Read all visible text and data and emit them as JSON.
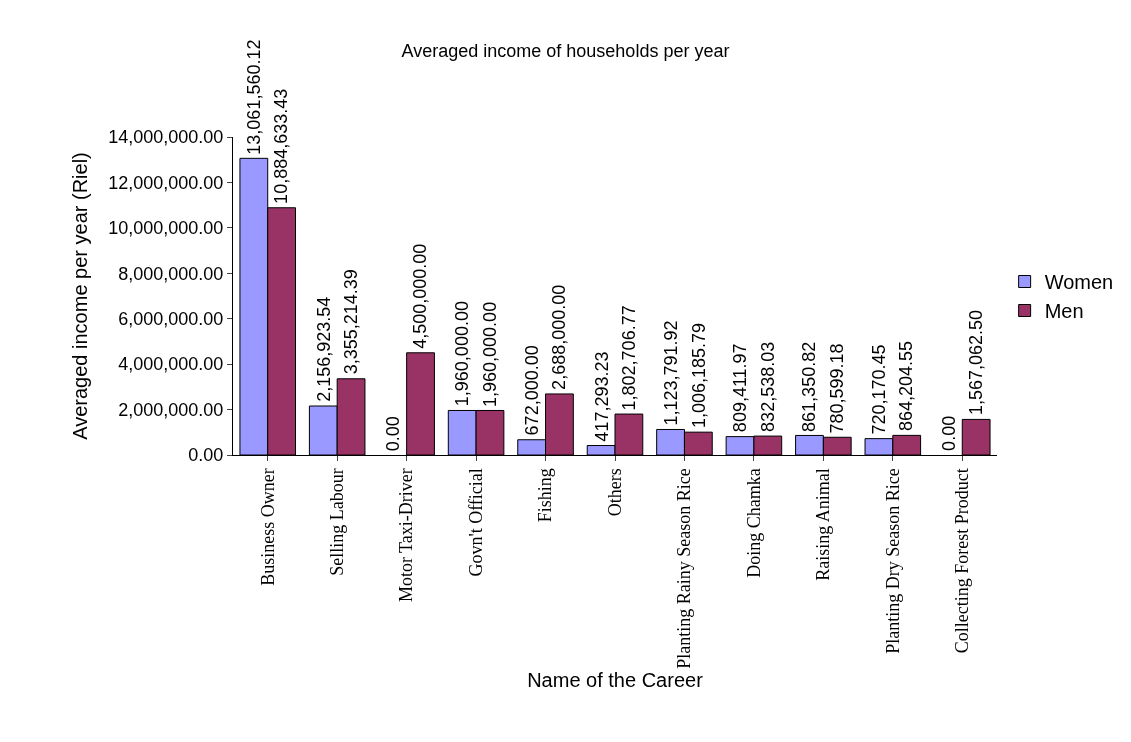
{
  "chart_data": {
    "type": "bar",
    "title": "Averaged income of households per year",
    "xlabel": "Name of the Career",
    "ylabel": "Averaged income per year (Riel)",
    "categories": [
      "Business Owner",
      "Selling Labour",
      "Motor Taxi-Driver",
      "Govn't Official",
      "Fishing",
      "Others",
      "Planting Rainy Season Rice",
      "Doing Chamka",
      "Raising Animal",
      "Planting Dry Season Rice",
      "Collecting Forest Product"
    ],
    "series": [
      {
        "name": "Women",
        "color": "#9999ff",
        "values": [
          13061560.12,
          2156923.54,
          0.0,
          1960000.0,
          672000.0,
          417293.23,
          1123791.92,
          809411.97,
          861350.82,
          720170.45,
          0.0
        ],
        "value_labels": [
          "13,061,560.12",
          "2,156,923.54",
          "0.00",
          "1,960,000.00",
          "672,000.00",
          "417,293.23",
          "1,123,791.92",
          "809,411.97",
          "861,350.82",
          "720,170.45",
          "0.00"
        ]
      },
      {
        "name": "Men",
        "color": "#993366",
        "values": [
          10884633.43,
          3355214.39,
          4500000.0,
          1960000.0,
          2688000.0,
          1802706.77,
          1006185.79,
          832538.03,
          780599.18,
          864204.55,
          1567062.5
        ],
        "value_labels": [
          "10,884,633.43",
          "3,355,214.39",
          "4,500,000.00",
          "1,960,000.00",
          "2,688,000.00",
          "1,802,706.77",
          "1,006,185.79",
          "832,538.03",
          "780,599.18",
          "864,204.55",
          "1,567,062.50"
        ]
      }
    ],
    "ylim": [
      0,
      14000000
    ],
    "yticks": [
      {
        "value": 0,
        "label": "0.00"
      },
      {
        "value": 2000000,
        "label": "2,000,000.00"
      },
      {
        "value": 4000000,
        "label": "4,000,000.00"
      },
      {
        "value": 6000000,
        "label": "6,000,000.00"
      },
      {
        "value": 8000000,
        "label": "8,000,000.00"
      },
      {
        "value": 10000000,
        "label": "10,000,000.00"
      },
      {
        "value": 12000000,
        "label": "12,000,000.00"
      },
      {
        "value": 14000000,
        "label": "14,000,000.00"
      }
    ],
    "legend": "right"
  }
}
